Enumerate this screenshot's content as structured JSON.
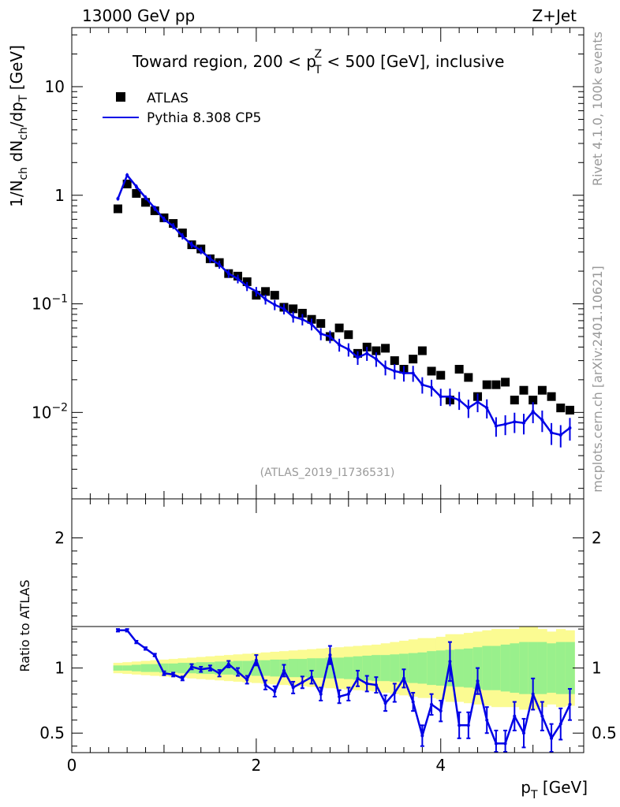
{
  "header": {
    "left": "13000 GeV pp",
    "right": "Z+Jet"
  },
  "side_labels": {
    "rivet": "Rivet 4.1.0,  100k events",
    "mcplots": "mcplots.cern.ch [arXiv:2401.10621]"
  },
  "colors": {
    "mc": "#0000e6",
    "band_green": "#99f08c",
    "band_yellow": "#fbfb92",
    "data": "#000000"
  },
  "chart_data": [
    {
      "type": "scatter",
      "yscale": "log",
      "title_parts": {
        "pre": "Toward region, 200 < p",
        "sup": "Z",
        "sub": "T",
        "post": " < 500 [GeV], inclusive"
      },
      "ylabel_parts": {
        "a": "1/N",
        "a_sub": "ch",
        "b": " dN",
        "b_sub": "ch",
        "c": "/dp",
        "c_sub": "T",
        "d": " [GeV]"
      },
      "xlim": [
        0,
        5.55
      ],
      "ylim": [
        0.0016,
        35
      ],
      "yticks": [
        {
          "v": 10,
          "base": "10",
          "exp": ""
        },
        {
          "v": 1,
          "base": "1",
          "exp": ""
        },
        {
          "v": 0.1,
          "base": "10",
          "exp": "−1"
        },
        {
          "v": 0.01,
          "base": "10",
          "exp": "−2"
        }
      ],
      "legend": {
        "data_label": "ATLAS",
        "mc_label": "Pythia 8.308 CP5",
        "placement": "top-left"
      },
      "watermark": "(ATLAS_2019_I1736531)",
      "x": [
        0.5,
        0.6,
        0.7,
        0.8,
        0.9,
        1.0,
        1.1,
        1.2,
        1.3,
        1.4,
        1.5,
        1.6,
        1.7,
        1.8,
        1.9,
        2.0,
        2.1,
        2.2,
        2.3,
        2.4,
        2.5,
        2.6,
        2.7,
        2.8,
        2.9,
        3.0,
        3.1,
        3.2,
        3.3,
        3.4,
        3.5,
        3.6,
        3.7,
        3.8,
        3.9,
        4.0,
        4.1,
        4.2,
        4.3,
        4.4,
        4.5,
        4.6,
        4.7,
        4.8,
        4.9,
        5.0,
        5.1,
        5.2,
        5.3,
        5.4
      ],
      "series": [
        {
          "name": "ATLAS",
          "values": [
            0.75,
            1.27,
            1.04,
            0.86,
            0.72,
            0.62,
            0.55,
            0.45,
            0.35,
            0.32,
            0.26,
            0.24,
            0.19,
            0.18,
            0.16,
            0.12,
            0.13,
            0.12,
            0.093,
            0.09,
            0.082,
            0.072,
            0.066,
            0.05,
            0.06,
            0.052,
            0.035,
            0.04,
            0.037,
            0.039,
            0.03,
            0.025,
            0.031,
            0.037,
            0.024,
            0.022,
            0.013,
            0.025,
            0.021,
            0.014,
            0.018,
            0.018,
            0.019,
            0.013,
            0.016,
            0.013,
            0.016,
            0.014,
            0.011,
            0.0105
          ]
        },
        {
          "name": "Pythia 8.308 CP5",
          "values": [
            0.93,
            1.53,
            1.2,
            0.95,
            0.76,
            0.6,
            0.52,
            0.42,
            0.35,
            0.31,
            0.26,
            0.23,
            0.19,
            0.17,
            0.145,
            0.13,
            0.11,
            0.098,
            0.09,
            0.076,
            0.072,
            0.065,
            0.053,
            0.05,
            0.042,
            0.038,
            0.032,
            0.035,
            0.031,
            0.026,
            0.024,
            0.023,
            0.023,
            0.018,
            0.017,
            0.014,
            0.014,
            0.013,
            0.011,
            0.0125,
            0.011,
            0.0075,
            0.0078,
            0.0082,
            0.008,
            0.0102,
            0.0085,
            0.0065,
            0.0062,
            0.0072
          ]
        }
      ]
    },
    {
      "type": "line",
      "ylabel": "Ratio to ATLAS",
      "xlabel_parts": {
        "a": "p",
        "sub": "T",
        "b": " [GeV]"
      },
      "xlim": [
        0,
        5.55
      ],
      "ylim": [
        0.35,
        2.3
      ],
      "xticks": [
        0,
        2,
        4
      ],
      "yticks": [
        0.5,
        1,
        2
      ],
      "reference_line": 1,
      "x": [
        0.5,
        0.6,
        0.7,
        0.8,
        0.9,
        1.0,
        1.1,
        1.2,
        1.3,
        1.4,
        1.5,
        1.6,
        1.7,
        1.8,
        1.9,
        2.0,
        2.1,
        2.2,
        2.3,
        2.4,
        2.5,
        2.6,
        2.7,
        2.8,
        2.9,
        3.0,
        3.1,
        3.2,
        3.3,
        3.4,
        3.5,
        3.6,
        3.7,
        3.8,
        3.9,
        4.0,
        4.1,
        4.2,
        4.3,
        4.4,
        4.5,
        4.6,
        4.7,
        4.8,
        4.9,
        5.0,
        5.1,
        5.2,
        5.3,
        5.4
      ],
      "series": [
        {
          "name": "Pythia 8.308 CP5 / ATLAS",
          "values": [
            1.29,
            1.29,
            1.2,
            1.15,
            1.1,
            0.96,
            0.95,
            0.92,
            1.01,
            0.99,
            1.0,
            0.96,
            1.03,
            0.97,
            0.91,
            1.06,
            0.87,
            0.82,
            0.98,
            0.85,
            0.89,
            0.93,
            0.8,
            1.1,
            0.78,
            0.8,
            0.92,
            0.88,
            0.87,
            0.73,
            0.81,
            0.92,
            0.74,
            0.48,
            0.72,
            0.67,
            1.05,
            0.56,
            0.56,
            0.9,
            0.6,
            0.42,
            0.42,
            0.63,
            0.5,
            0.8,
            0.63,
            0.46,
            0.57,
            0.72
          ],
          "errors": [
            0.01,
            0.01,
            0.01,
            0.01,
            0.01,
            0.015,
            0.015,
            0.015,
            0.02,
            0.02,
            0.02,
            0.025,
            0.025,
            0.03,
            0.03,
            0.04,
            0.035,
            0.04,
            0.045,
            0.045,
            0.045,
            0.05,
            0.05,
            0.07,
            0.05,
            0.05,
            0.06,
            0.06,
            0.06,
            0.06,
            0.07,
            0.07,
            0.07,
            0.08,
            0.08,
            0.08,
            0.15,
            0.1,
            0.1,
            0.1,
            0.1,
            0.1,
            0.1,
            0.11,
            0.11,
            0.12,
            0.11,
            0.11,
            0.12,
            0.12
          ]
        }
      ],
      "bands": {
        "green_halfwidth": [
          0.02,
          0.02,
          0.025,
          0.03,
          0.03,
          0.035,
          0.035,
          0.04,
          0.04,
          0.045,
          0.045,
          0.05,
          0.05,
          0.055,
          0.055,
          0.06,
          0.06,
          0.065,
          0.065,
          0.07,
          0.07,
          0.075,
          0.075,
          0.08,
          0.08,
          0.085,
          0.09,
          0.095,
          0.1,
          0.1,
          0.105,
          0.11,
          0.115,
          0.12,
          0.13,
          0.135,
          0.14,
          0.145,
          0.15,
          0.16,
          0.17,
          0.17,
          0.18,
          0.19,
          0.2,
          0.2,
          0.2,
          0.19,
          0.2,
          0.2
        ],
        "yellow_halfwidth": [
          0.04,
          0.045,
          0.05,
          0.055,
          0.06,
          0.065,
          0.07,
          0.075,
          0.08,
          0.085,
          0.09,
          0.095,
          0.1,
          0.105,
          0.11,
          0.115,
          0.12,
          0.125,
          0.13,
          0.135,
          0.14,
          0.145,
          0.15,
          0.155,
          0.16,
          0.165,
          0.17,
          0.175,
          0.18,
          0.19,
          0.2,
          0.21,
          0.22,
          0.23,
          0.23,
          0.24,
          0.26,
          0.26,
          0.27,
          0.28,
          0.29,
          0.3,
          0.3,
          0.3,
          0.32,
          0.32,
          0.3,
          0.28,
          0.3,
          0.29
        ]
      }
    }
  ]
}
